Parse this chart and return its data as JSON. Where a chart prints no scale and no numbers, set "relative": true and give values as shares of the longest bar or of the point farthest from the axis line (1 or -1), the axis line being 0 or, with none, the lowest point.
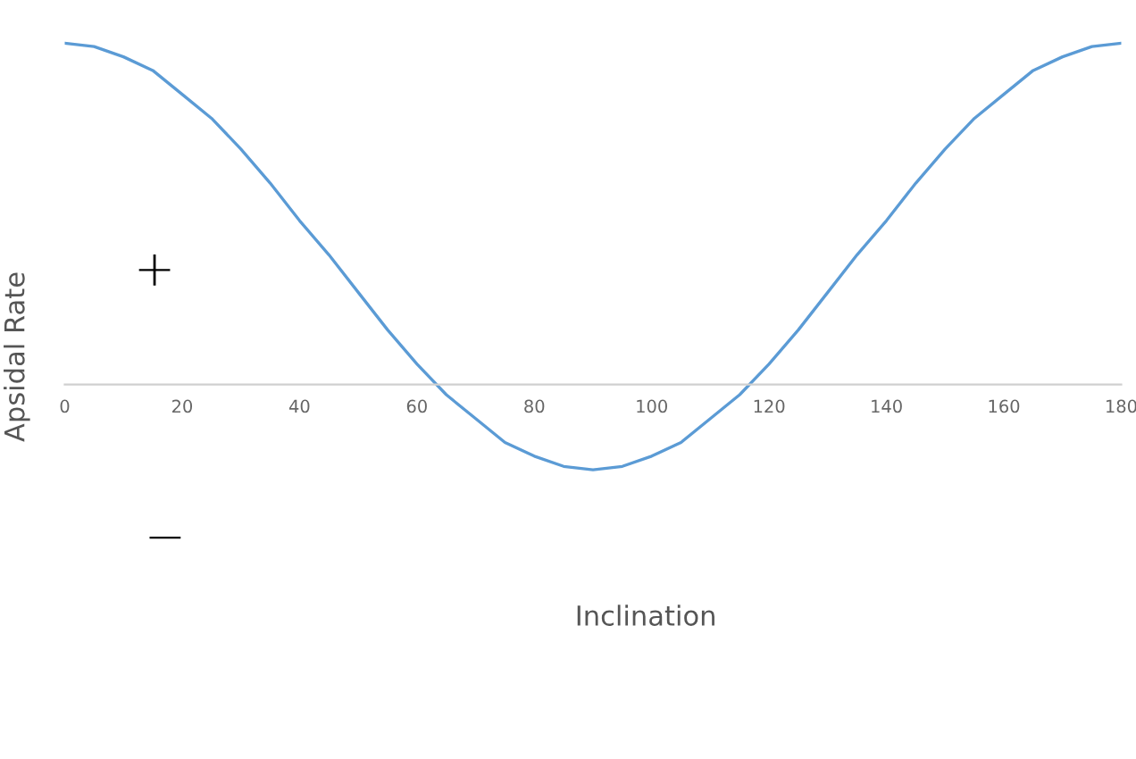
{
  "chart_data": {
    "type": "line",
    "relative": true,
    "xlabel": "Inclination",
    "ylabel": "Apsidal Rate",
    "x": [
      0,
      5,
      10,
      15,
      20,
      25,
      30,
      35,
      40,
      45,
      50,
      55,
      60,
      65,
      70,
      75,
      80,
      85,
      90,
      95,
      100,
      105,
      110,
      115,
      120,
      125,
      130,
      135,
      140,
      145,
      150,
      155,
      160,
      165,
      170,
      175,
      180
    ],
    "series": [
      {
        "color": "#5b9bd5",
        "values": [
          1,
          0.99,
          0.96,
          0.92,
          0.85,
          0.78,
          0.69,
          0.59,
          0.48,
          0.38,
          0.27,
          0.16,
          0.06,
          -0.03,
          -0.1,
          -0.17,
          -0.21,
          -0.24,
          -0.25,
          -0.24,
          -0.21,
          -0.17,
          -0.1,
          -0.03,
          0.06,
          0.16,
          0.27,
          0.38,
          0.48,
          0.59,
          0.69,
          0.78,
          0.85,
          0.92,
          0.96,
          0.99,
          1
        ]
      }
    ],
    "xlim": [
      0,
      180
    ],
    "xticks": [
      0,
      20,
      40,
      60,
      80,
      100,
      120,
      140,
      160,
      180
    ],
    "annotations": [
      "+",
      "−"
    ],
    "grid": false,
    "legend": false,
    "marker": "none",
    "line_style": "solid"
  }
}
